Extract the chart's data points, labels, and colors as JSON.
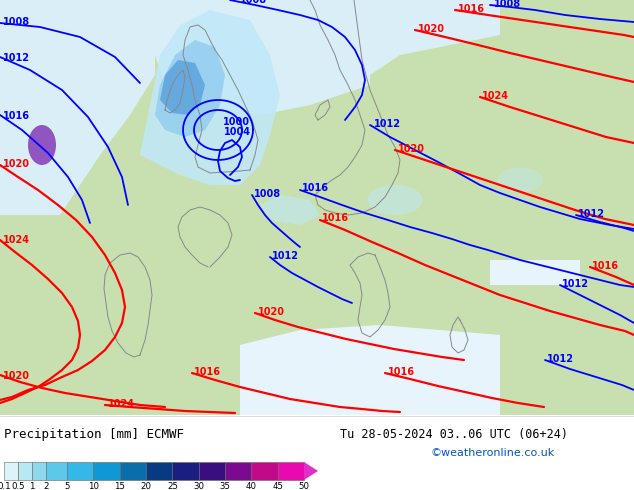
{
  "title_left": "Precipitation [mm] ECMWF",
  "title_right": "Tu 28-05-2024 03..06 UTC (06+24)",
  "credit": "©weatheronline.co.uk",
  "colorbar_labels": [
    "0.1",
    "0.5",
    "1",
    "2",
    "5",
    "10",
    "15",
    "20",
    "25",
    "30",
    "35",
    "40",
    "45",
    "50"
  ],
  "colorbar_colors": [
    "#daf4f8",
    "#b8e8f2",
    "#8ed8ee",
    "#5ec8ea",
    "#34b8e6",
    "#1098d4",
    "#0a6eaa",
    "#083a82",
    "#1a1e80",
    "#3a0e7e",
    "#7a0a90",
    "#c00a88",
    "#e80ab0",
    "#f040d0"
  ],
  "isobar_blue": "#0000ff",
  "isobar_red": "#ff0000",
  "isobar_gray": "#888888",
  "land_green": "#b8d8a0",
  "land_green2": "#c8e0b0",
  "sea_white": "#daeef8",
  "sea_light": "#e8f4fc",
  "precip_light1": "#c0e8f8",
  "precip_light2": "#90ccf0",
  "precip_med": "#5098d8",
  "precip_dark": "#2060b0",
  "precip_purple": "#8844bb",
  "bg_white": "#f0f0f0",
  "fig_width": 6.34,
  "fig_height": 4.9,
  "dpi": 100
}
